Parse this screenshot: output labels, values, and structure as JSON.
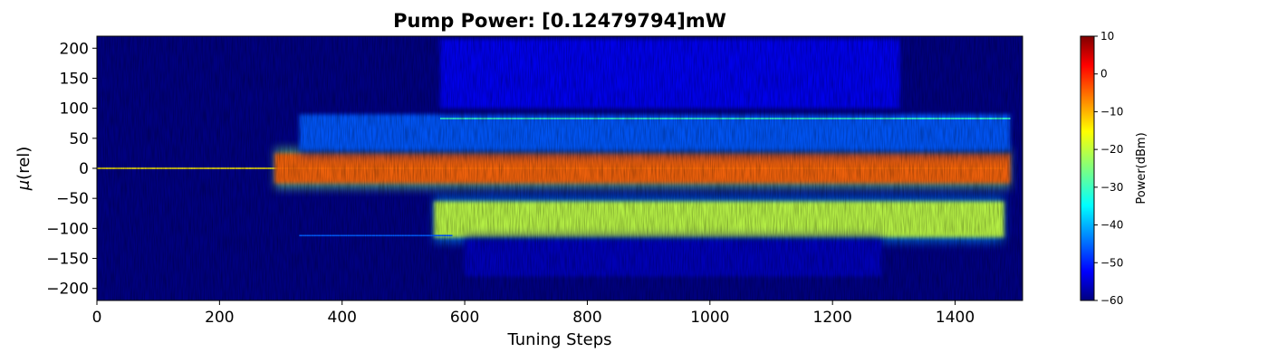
{
  "chart_data": {
    "type": "heatmap",
    "title": "Pump Power: [0.12479794]mW",
    "xlabel": "Tuning Steps",
    "ylabel_symbol": "μ",
    "ylabel_suffix": "(rel)",
    "xlim": [
      0,
      1510
    ],
    "ylim": [
      -220,
      220
    ],
    "xticks": [
      0,
      200,
      400,
      600,
      800,
      1000,
      1200,
      1400
    ],
    "yticks": [
      200,
      150,
      100,
      50,
      0,
      -50,
      -100,
      -150,
      -200
    ],
    "colormap": "jet",
    "colorbar": {
      "label": "Power(dBm)",
      "range": [
        -60,
        10
      ],
      "ticks": [
        10,
        0,
        -10,
        -20,
        -30,
        -40,
        -50,
        -60
      ]
    },
    "background_level_dbm": -60,
    "features": [
      {
        "name": "pump-line",
        "y": 0,
        "x_range": [
          0,
          1480
        ],
        "level_dbm": -15
      },
      {
        "name": "main-comb-band",
        "y_range": [
          -25,
          25
        ],
        "x_range": [
          290,
          1490
        ],
        "level_dbm": -5
      },
      {
        "name": "upper-sideband",
        "y_range": [
          30,
          90
        ],
        "x_range": [
          330,
          1490
        ],
        "level_dbm": -45
      },
      {
        "name": "lower-band-breather",
        "y_range": [
          -115,
          -55
        ],
        "x_range": [
          550,
          1480
        ],
        "level_dbm": -20
      },
      {
        "name": "upper-sideband-line",
        "y": 83,
        "x_range": [
          560,
          1490
        ],
        "level_dbm": -30
      },
      {
        "name": "lower-sideband-line",
        "y": -112,
        "x_range": [
          330,
          580
        ],
        "level_dbm": -45
      },
      {
        "name": "upper-fine-lines",
        "y_range": [
          100,
          215
        ],
        "x_range": [
          560,
          1310
        ],
        "level_dbm": -52
      },
      {
        "name": "lower-faint-region",
        "y_range": [
          -180,
          -120
        ],
        "x_range": [
          600,
          1280
        ],
        "level_dbm": -56
      }
    ]
  }
}
